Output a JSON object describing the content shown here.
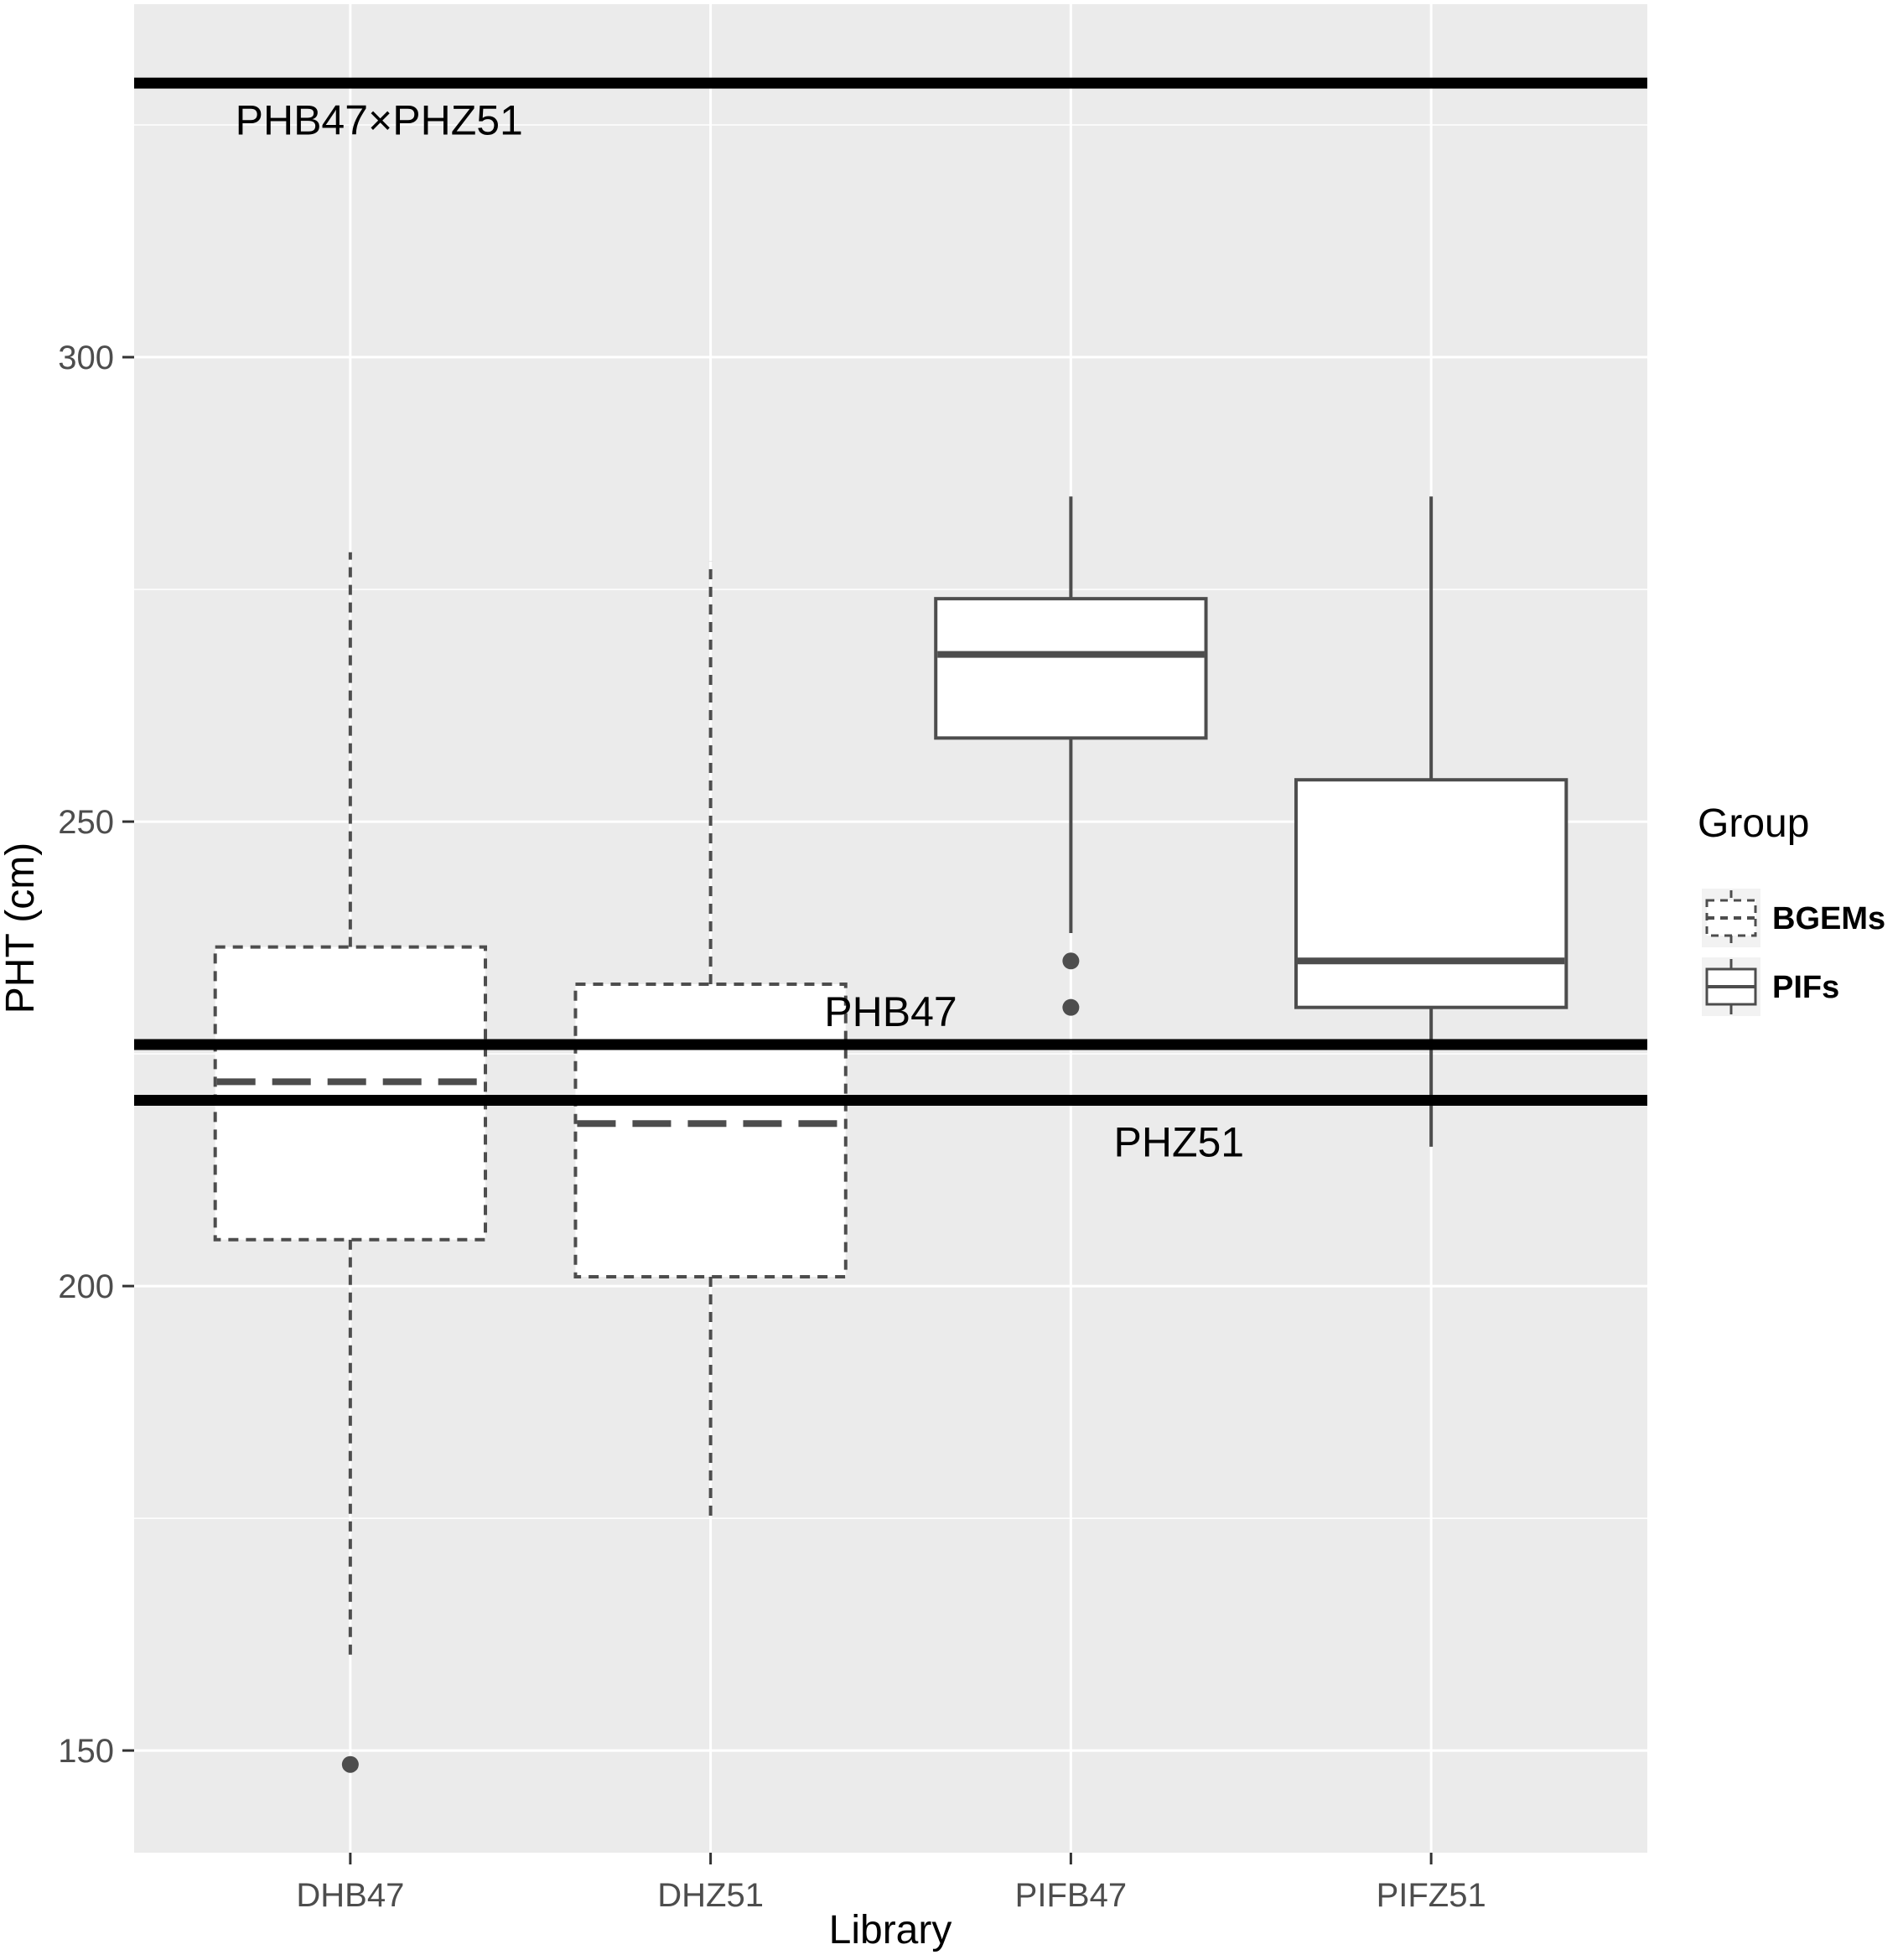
{
  "chart_data": {
    "type": "boxplot",
    "xlabel": "Library",
    "ylabel": "PHT (cm)",
    "ylim": [
      139,
      338
    ],
    "y_ticks": [
      150,
      200,
      250,
      300
    ],
    "grid": true,
    "legend": {
      "title": "Group",
      "position": "right",
      "entries": [
        {
          "name": "BGEMs",
          "style": "dashed"
        },
        {
          "name": "PIFs",
          "style": "solid"
        }
      ]
    },
    "categories": [
      "DHB47",
      "DHZ51",
      "PIFB47",
      "PIFZ51"
    ],
    "boxes": [
      {
        "category": "DHB47",
        "group": "BGEMs",
        "whisker_low": 160,
        "q1": 205,
        "median": 222,
        "q3": 236.5,
        "whisker_high": 279,
        "outliers": [
          148.5
        ]
      },
      {
        "category": "DHZ51",
        "group": "BGEMs",
        "whisker_low": 175,
        "q1": 201,
        "median": 217.5,
        "q3": 232.5,
        "whisker_high": 278,
        "outliers": []
      },
      {
        "category": "PIFB47",
        "group": "PIFs",
        "whisker_low": 238,
        "q1": 259,
        "median": 268,
        "q3": 274,
        "whisker_high": 285,
        "outliers": [
          235,
          230
        ]
      },
      {
        "category": "PIFZ51",
        "group": "PIFs",
        "whisker_low": 215,
        "q1": 230,
        "median": 235,
        "q3": 254.5,
        "whisker_high": 285,
        "outliers": []
      }
    ],
    "reference_lines": [
      {
        "label": "PHB47×PHZ51",
        "y": 329.5,
        "label_y": 325.5,
        "label_x": 0.08
      },
      {
        "label": "PHB47",
        "y": 226,
        "label_y": 229.5,
        "label_x": 1.5
      },
      {
        "label": "PHZ51",
        "y": 220,
        "label_y": 215.5,
        "label_x": 2.3
      }
    ],
    "colors": {
      "panel": "#ebebeb",
      "grid": "#ffffff",
      "box_line": "#4d4d4d",
      "box_fill": "#ffffff",
      "reference_line": "#000000",
      "outlier": "#4d4d4d"
    }
  }
}
